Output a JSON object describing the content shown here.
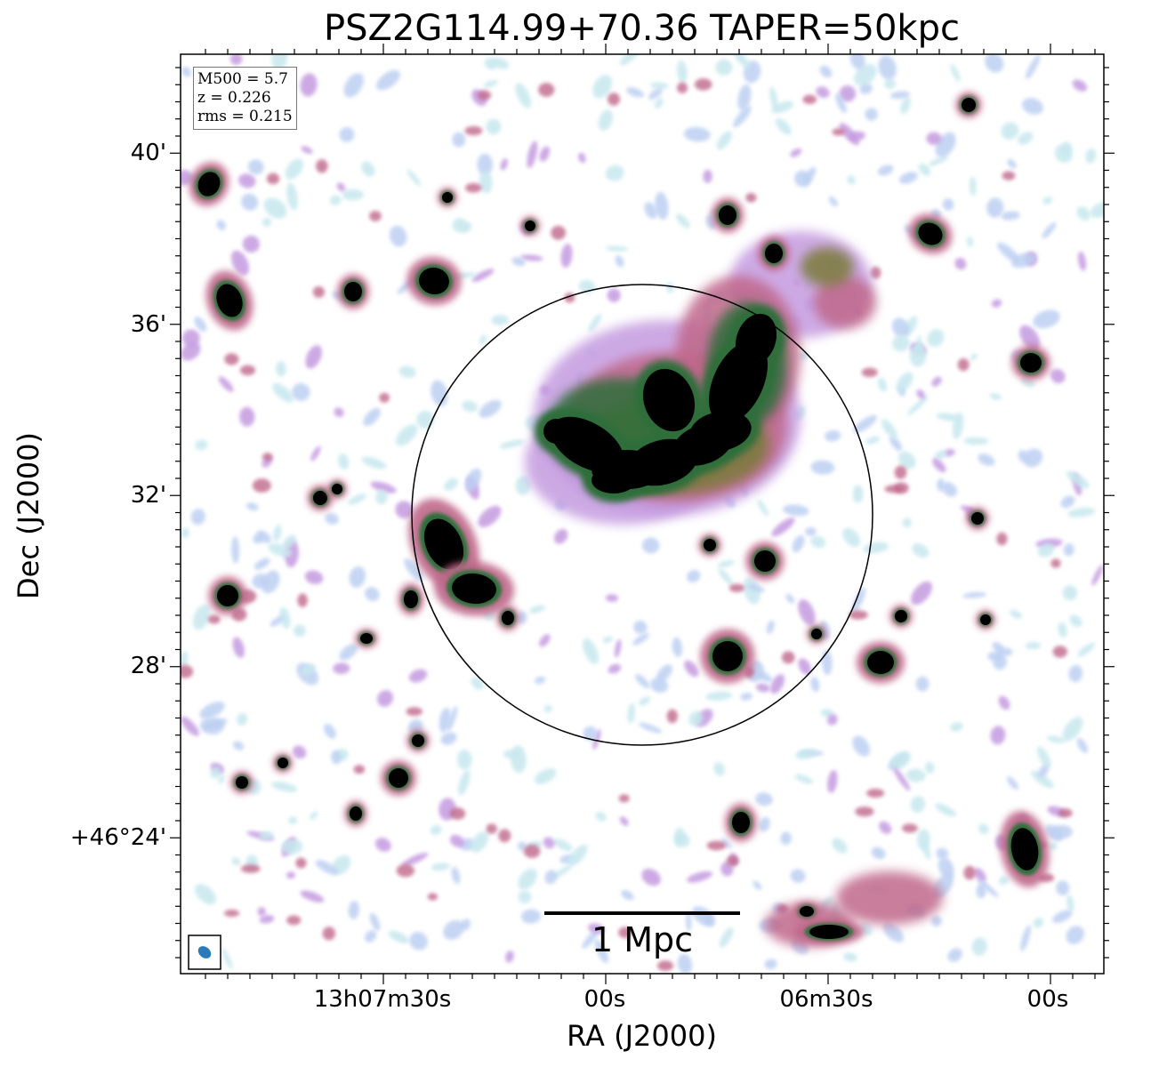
{
  "chart_data": {
    "type": "heatmap",
    "title": "PSZ2G114.99+70.36 TAPER=50kpc",
    "xlabel": "RA (J2000)",
    "ylabel": "Dec (J2000)",
    "x_tick_labels": [
      "13h07m30s",
      "00s",
      "06m30s",
      "00s"
    ],
    "y_tick_labels": [
      "40'",
      "36'",
      "32'",
      "28'",
      "+46°24'"
    ],
    "info_box": [
      "M500 = 5.7",
      "z = 0.226",
      "rms = 0.215"
    ],
    "scale_bar_label": "1 Mpc",
    "colormap": [
      "#ffffff",
      "#c7e8ee",
      "#bdd0f2",
      "#c59be0",
      "#c0688a",
      "#7a7a3a",
      "#2e6e3a",
      "#000000"
    ],
    "circle_color": "#000000",
    "beam_color": "#2b7bb9"
  }
}
